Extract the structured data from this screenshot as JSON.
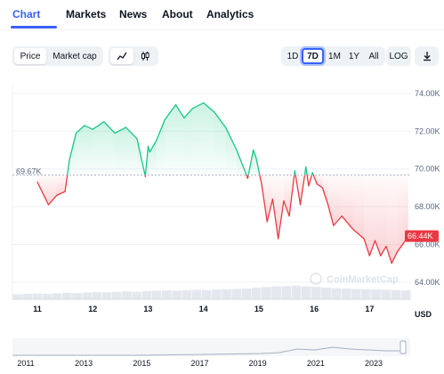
{
  "tabs": [
    {
      "label": "Chart",
      "active": true
    },
    {
      "label": "Markets",
      "active": false
    },
    {
      "label": "News",
      "active": false
    },
    {
      "label": "About",
      "active": false
    },
    {
      "label": "Analytics",
      "active": false
    }
  ],
  "toolbar": {
    "type_toggle": [
      "Price",
      "Market cap"
    ],
    "type_selected": "Price",
    "view_icons": [
      "line-chart-icon",
      "candlestick-icon"
    ],
    "ranges": [
      "1D",
      "7D",
      "1M",
      "1Y",
      "All"
    ],
    "range_selected": "7D",
    "log_label": "LOG",
    "download_icon": "download-icon"
  },
  "colors": {
    "accent": "#3861fb",
    "up": "#16c784",
    "down": "#ea3943",
    "price_badge": "#ea3943"
  },
  "chart_data": {
    "type": "line",
    "unit": "USD",
    "x_ticks": [
      "11",
      "12",
      "13",
      "14",
      "15",
      "16",
      "17"
    ],
    "y_ticks": [
      "74.00K",
      "72.00K",
      "70.00K",
      "68.00K",
      "66.00K",
      "64.00K"
    ],
    "ylim": [
      63000,
      74800
    ],
    "reference_label": "69.67K",
    "reference_value": 69670,
    "current_label": "66.44K",
    "current_value": 66440,
    "series": [
      {
        "x": [
          11.0,
          11.2,
          11.35,
          11.5,
          11.58,
          11.7,
          11.85,
          12.0,
          12.2,
          12.4,
          12.6,
          12.8,
          12.95,
          13.0,
          13.03,
          13.15,
          13.3,
          13.5,
          13.65,
          13.8,
          14.0,
          14.2,
          14.4,
          14.6,
          14.8,
          14.9,
          14.95,
          15.05,
          15.15,
          15.25,
          15.35,
          15.45,
          15.55,
          15.65,
          15.75,
          15.85,
          15.9,
          15.97,
          16.05,
          16.15,
          16.25,
          16.35,
          16.5,
          16.7,
          16.9,
          17.0,
          17.1,
          17.2,
          17.3,
          17.4,
          17.5,
          17.6,
          17.7
        ],
        "y": [
          69300,
          68100,
          68600,
          68800,
          70500,
          71900,
          72300,
          72100,
          72500,
          71900,
          72200,
          71600,
          69600,
          71200,
          70900,
          71500,
          72600,
          73400,
          72700,
          73200,
          73500,
          73000,
          72200,
          71000,
          69500,
          71000,
          70600,
          69200,
          67200,
          68400,
          66300,
          68300,
          67500,
          69900,
          68100,
          70100,
          69100,
          69800,
          69200,
          69000,
          68100,
          67000,
          67500,
          66800,
          66300,
          65400,
          66200,
          65400,
          65900,
          65000,
          65600,
          66000,
          66440
        ]
      }
    ],
    "volume": [
      0.35,
      0.38,
      0.4,
      0.37,
      0.42,
      0.45,
      0.43,
      0.47,
      0.5,
      0.48,
      0.52,
      0.55,
      0.53,
      0.57,
      0.6,
      0.62,
      0.6,
      0.64,
      0.66,
      0.65,
      0.68,
      0.7,
      0.72,
      0.75,
      0.8,
      0.85,
      0.9,
      0.92,
      0.95,
      0.9,
      0.88,
      0.82,
      0.78,
      0.75,
      0.72,
      0.7,
      0.68,
      0.66,
      0.64,
      0.62
    ],
    "navigator_years": [
      "2011",
      "2013",
      "2015",
      "2017",
      "2019",
      "2021",
      "2023"
    ],
    "watermark": "CoinMarketCap"
  }
}
